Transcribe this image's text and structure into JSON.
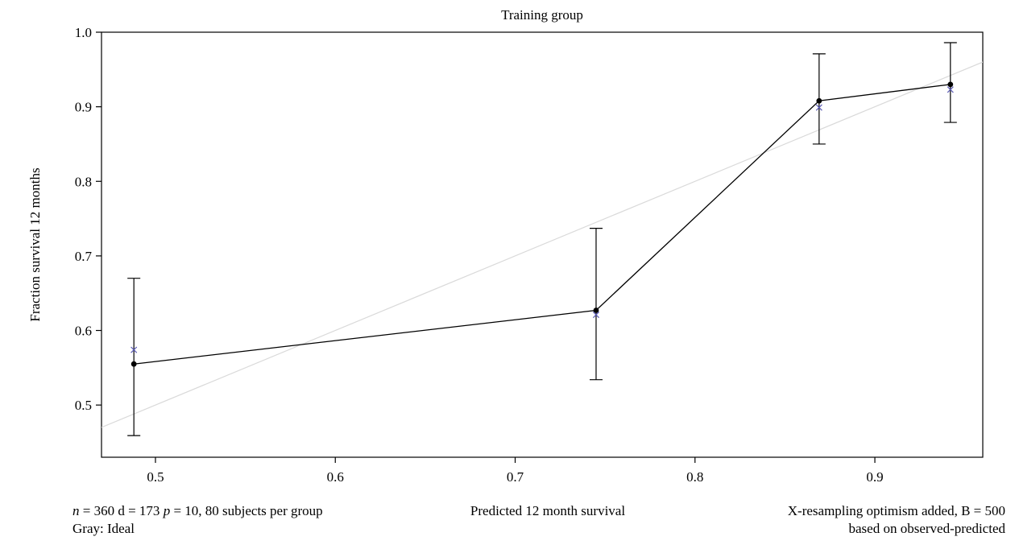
{
  "chart_data": {
    "type": "scatter",
    "title": "Training group",
    "xlabel": "Predicted 12 month survival",
    "ylabel": "Fraction survival 12 months",
    "xlim": [
      0.47,
      0.96
    ],
    "ylim": [
      0.43,
      1.0
    ],
    "x_ticks": [
      0.5,
      0.6,
      0.7,
      0.8,
      0.9
    ],
    "x_tick_labels": [
      "0.5",
      "0.6",
      "0.7",
      "0.8",
      "0.9"
    ],
    "y_ticks": [
      0.5,
      0.6,
      0.7,
      0.8,
      0.9,
      1.0
    ],
    "y_tick_labels": [
      "0.5",
      "0.6",
      "0.7",
      "0.8",
      "0.9",
      "1.0"
    ],
    "grid": false,
    "series": [
      {
        "style": "line-with-points-and-errorbars",
        "color": "#000000",
        "x": [
          0.488,
          0.745,
          0.869,
          0.942
        ],
        "y": [
          0.555,
          0.627,
          0.908,
          0.93
        ],
        "lower": [
          0.459,
          0.534,
          0.85,
          0.879
        ],
        "upper": [
          0.67,
          0.737,
          0.971,
          0.986
        ]
      },
      {
        "style": "cross-markers",
        "color": "#5a5ab4",
        "x": [
          0.488,
          0.745,
          0.869,
          0.942
        ],
        "y": [
          0.574,
          0.621,
          0.899,
          0.923
        ]
      },
      {
        "style": "reference-line",
        "color": "#d9d9d9",
        "x": [
          0.47,
          0.96
        ],
        "y": [
          0.47,
          0.96
        ]
      }
    ],
    "footnotes": {
      "left_line1_parts": [
        "n",
        " = 360 d = 173 ",
        "p",
        " = 10, 80 subjects per group"
      ],
      "left_line2": "Gray: Ideal",
      "right_line1": "X-resampling optimism added, B = 500",
      "right_line2": "based on observed-predicted"
    }
  }
}
